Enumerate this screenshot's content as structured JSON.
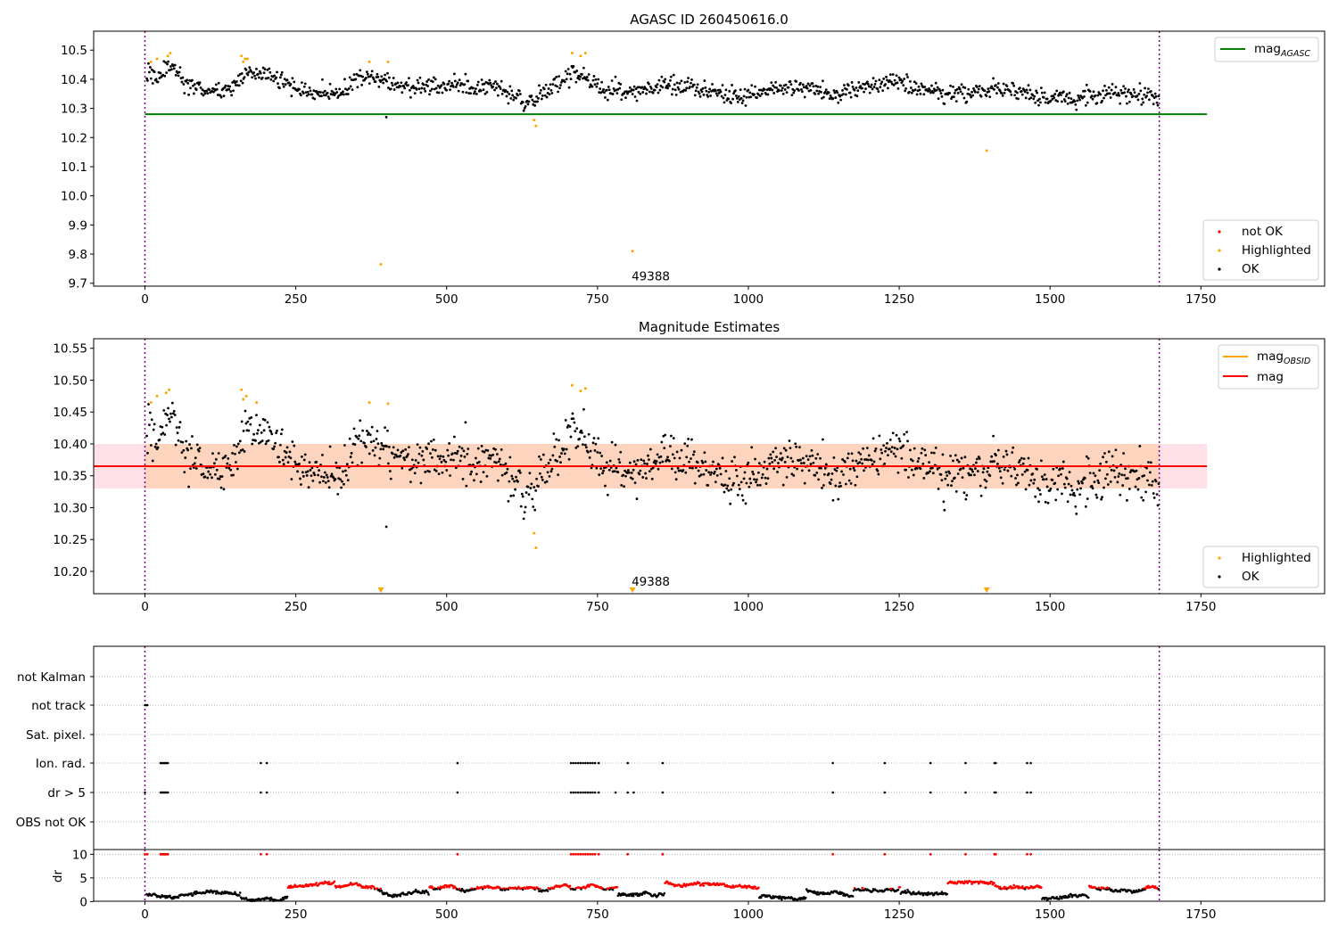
{
  "chart_data": [
    {
      "type": "scatter",
      "title": "AGASC ID 260450616.0",
      "xlim": [
        -85,
        1955
      ],
      "ylim": [
        9.69,
        10.565
      ],
      "x_ticks": [
        0,
        250,
        500,
        750,
        1000,
        1250,
        1500,
        1750
      ],
      "y_ticks": [
        9.7,
        9.8,
        9.9,
        10.0,
        10.1,
        10.2,
        10.3,
        10.4,
        10.5
      ],
      "y_tick_labels": [
        "9.7",
        "9.8",
        "9.9",
        "10.0",
        "10.1",
        "10.2",
        "10.3",
        "10.4",
        "10.5"
      ],
      "vlines": [
        0,
        1681
      ],
      "hline": {
        "y": 10.28,
        "x0": 0,
        "x1": 1760,
        "color": "#008000"
      },
      "legend_top": {
        "position": "top-right",
        "entries": [
          {
            "label": "mag",
            "sub": "AGASC",
            "color": "#008000",
            "marker": "line"
          }
        ]
      },
      "legend_bottom": {
        "position": "bottom-right",
        "entries": [
          {
            "label": "not OK",
            "color": "#ff0000",
            "marker": "dot"
          },
          {
            "label": "Highlighted",
            "color": "#ffa500",
            "marker": "dot"
          },
          {
            "label": "OK",
            "color": "#000000",
            "marker": "dot"
          }
        ]
      },
      "annotation": {
        "text": "49388",
        "x": 808,
        "y": 9.725
      },
      "segments": [
        [
          0,
          10.43
        ],
        [
          20,
          10.4
        ],
        [
          40,
          10.45
        ],
        [
          70,
          10.38
        ],
        [
          100,
          10.36
        ],
        [
          140,
          10.36
        ],
        [
          165,
          10.42
        ],
        [
          210,
          10.41
        ],
        [
          260,
          10.36
        ],
        [
          320,
          10.35
        ],
        [
          360,
          10.41
        ],
        [
          400,
          10.39
        ],
        [
          450,
          10.37
        ],
        [
          520,
          10.38
        ],
        [
          580,
          10.37
        ],
        [
          620,
          10.34
        ],
        [
          640,
          10.32
        ],
        [
          680,
          10.38
        ],
        [
          710,
          10.42
        ],
        [
          760,
          10.37
        ],
        [
          800,
          10.35
        ],
        [
          860,
          10.38
        ],
        [
          920,
          10.37
        ],
        [
          980,
          10.34
        ],
        [
          1040,
          10.37
        ],
        [
          1090,
          10.38
        ],
        [
          1140,
          10.34
        ],
        [
          1190,
          10.37
        ],
        [
          1240,
          10.39
        ],
        [
          1300,
          10.36
        ],
        [
          1360,
          10.35
        ],
        [
          1420,
          10.37
        ],
        [
          1480,
          10.34
        ],
        [
          1540,
          10.33
        ],
        [
          1600,
          10.35
        ],
        [
          1681,
          10.34
        ]
      ],
      "highlighted": [
        [
          10,
          10.46
        ],
        [
          20,
          10.47
        ],
        [
          38,
          10.48
        ],
        [
          42,
          10.49
        ],
        [
          160,
          10.48
        ],
        [
          163,
          10.46
        ],
        [
          166,
          10.47
        ],
        [
          170,
          10.47
        ],
        [
          372,
          10.46
        ],
        [
          403,
          10.46
        ],
        [
          645,
          10.26
        ],
        [
          648,
          10.24
        ],
        [
          708,
          10.49
        ],
        [
          722,
          10.48
        ],
        [
          730,
          10.49
        ],
        [
          1395,
          10.155
        ],
        [
          391,
          9.765
        ],
        [
          808,
          9.81
        ]
      ],
      "outliers_ok": [
        [
          400,
          10.27
        ]
      ]
    },
    {
      "type": "scatter",
      "title": "Magnitude Estimates",
      "xlim": [
        -85,
        1955
      ],
      "ylim": [
        10.165,
        10.565
      ],
      "x_ticks": [
        0,
        250,
        500,
        750,
        1000,
        1250,
        1500,
        1750
      ],
      "y_ticks": [
        10.2,
        10.25,
        10.3,
        10.35,
        10.4,
        10.45,
        10.5,
        10.55
      ],
      "y_tick_labels": [
        "10.20",
        "10.25",
        "10.30",
        "10.35",
        "10.40",
        "10.45",
        "10.50",
        "10.55"
      ],
      "vlines": [
        0,
        1681
      ],
      "mean_mag": 10.365,
      "band": {
        "y0": 10.33,
        "y1": 10.4,
        "x0": -85,
        "x1": 1760
      },
      "legend_top": {
        "position": "top-right",
        "entries": [
          {
            "label": "mag",
            "sub": "OBSID",
            "color": "#ffa500",
            "marker": "line"
          },
          {
            "label": "mag",
            "sub": "",
            "color": "#ff0000",
            "marker": "line"
          }
        ]
      },
      "legend_bottom": {
        "position": "bottom-right",
        "entries": [
          {
            "label": "Highlighted",
            "color": "#ffa500",
            "marker": "dot"
          },
          {
            "label": "OK",
            "color": "#000000",
            "marker": "dot"
          }
        ]
      },
      "annotation": {
        "text": "49388",
        "x": 808,
        "y": 10.175
      },
      "clipped_markers": [
        391,
        808,
        1395
      ],
      "highlighted": [
        [
          10,
          10.465
        ],
        [
          20,
          10.475
        ],
        [
          35,
          10.48
        ],
        [
          40,
          10.485
        ],
        [
          160,
          10.485
        ],
        [
          163,
          10.47
        ],
        [
          168,
          10.475
        ],
        [
          185,
          10.465
        ],
        [
          372,
          10.465
        ],
        [
          403,
          10.463
        ],
        [
          645,
          10.26
        ],
        [
          648,
          10.237
        ],
        [
          708,
          10.492
        ],
        [
          722,
          10.483
        ],
        [
          730,
          10.487
        ]
      ],
      "outliers_ok": [
        [
          400,
          10.27
        ]
      ]
    },
    {
      "type": "scatter",
      "title": "",
      "xlim": [
        -85,
        1955
      ],
      "ylim": [
        -0.5,
        7.5
      ],
      "categories": [
        "not Kalman",
        "not track",
        "Sat. pixel.",
        "Ion. rad.",
        "dr > 5",
        "OBS not OK"
      ],
      "vlines": [
        0,
        1681
      ],
      "flag_points": {
        "not track": [
          0,
          2,
          4
        ],
        "Ion. rad.": [
          26,
          28,
          30,
          32,
          34,
          36,
          38,
          192,
          202,
          518,
          706,
          710,
          714,
          718,
          722,
          726,
          730,
          734,
          738,
          742,
          746,
          752,
          800,
          858,
          1140,
          1226,
          1302,
          1360,
          1408,
          1410,
          1462,
          1468
        ],
        "dr > 5": [
          0,
          26,
          28,
          30,
          32,
          34,
          36,
          38,
          192,
          202,
          518,
          706,
          710,
          714,
          718,
          722,
          726,
          730,
          734,
          738,
          742,
          746,
          752,
          780,
          800,
          810,
          858,
          1140,
          1226,
          1302,
          1360,
          1408,
          1410,
          1462,
          1468
        ]
      }
    },
    {
      "type": "scatter",
      "title": "",
      "ylabel": "dr",
      "xlim": [
        -85,
        1955
      ],
      "ylim": [
        -0.3,
        11
      ],
      "x_ticks": [
        0,
        250,
        500,
        750,
        1000,
        1250,
        1500,
        1750
      ],
      "y_ticks": [
        0,
        5,
        10
      ],
      "y_tick_labels": [
        "0",
        "5",
        "10"
      ],
      "vlines": [
        0,
        1681
      ],
      "dr_high_points": [
        0,
        4,
        26,
        28,
        30,
        32,
        34,
        36,
        38,
        192,
        202,
        518,
        706,
        710,
        714,
        718,
        722,
        726,
        730,
        734,
        738,
        742,
        746,
        752,
        800,
        858,
        1140,
        1226,
        1302,
        1360,
        1408,
        1410,
        1462,
        1468
      ]
    }
  ],
  "colors": {
    "ok": "#000000",
    "highlighted": "#ffa500",
    "not_ok": "#ff0000",
    "agasc_line": "#008000",
    "mean_line": "#ff0000",
    "vline": "#800080",
    "band_pink": "#ffe0e6",
    "band_orange": "#fdd5be"
  }
}
